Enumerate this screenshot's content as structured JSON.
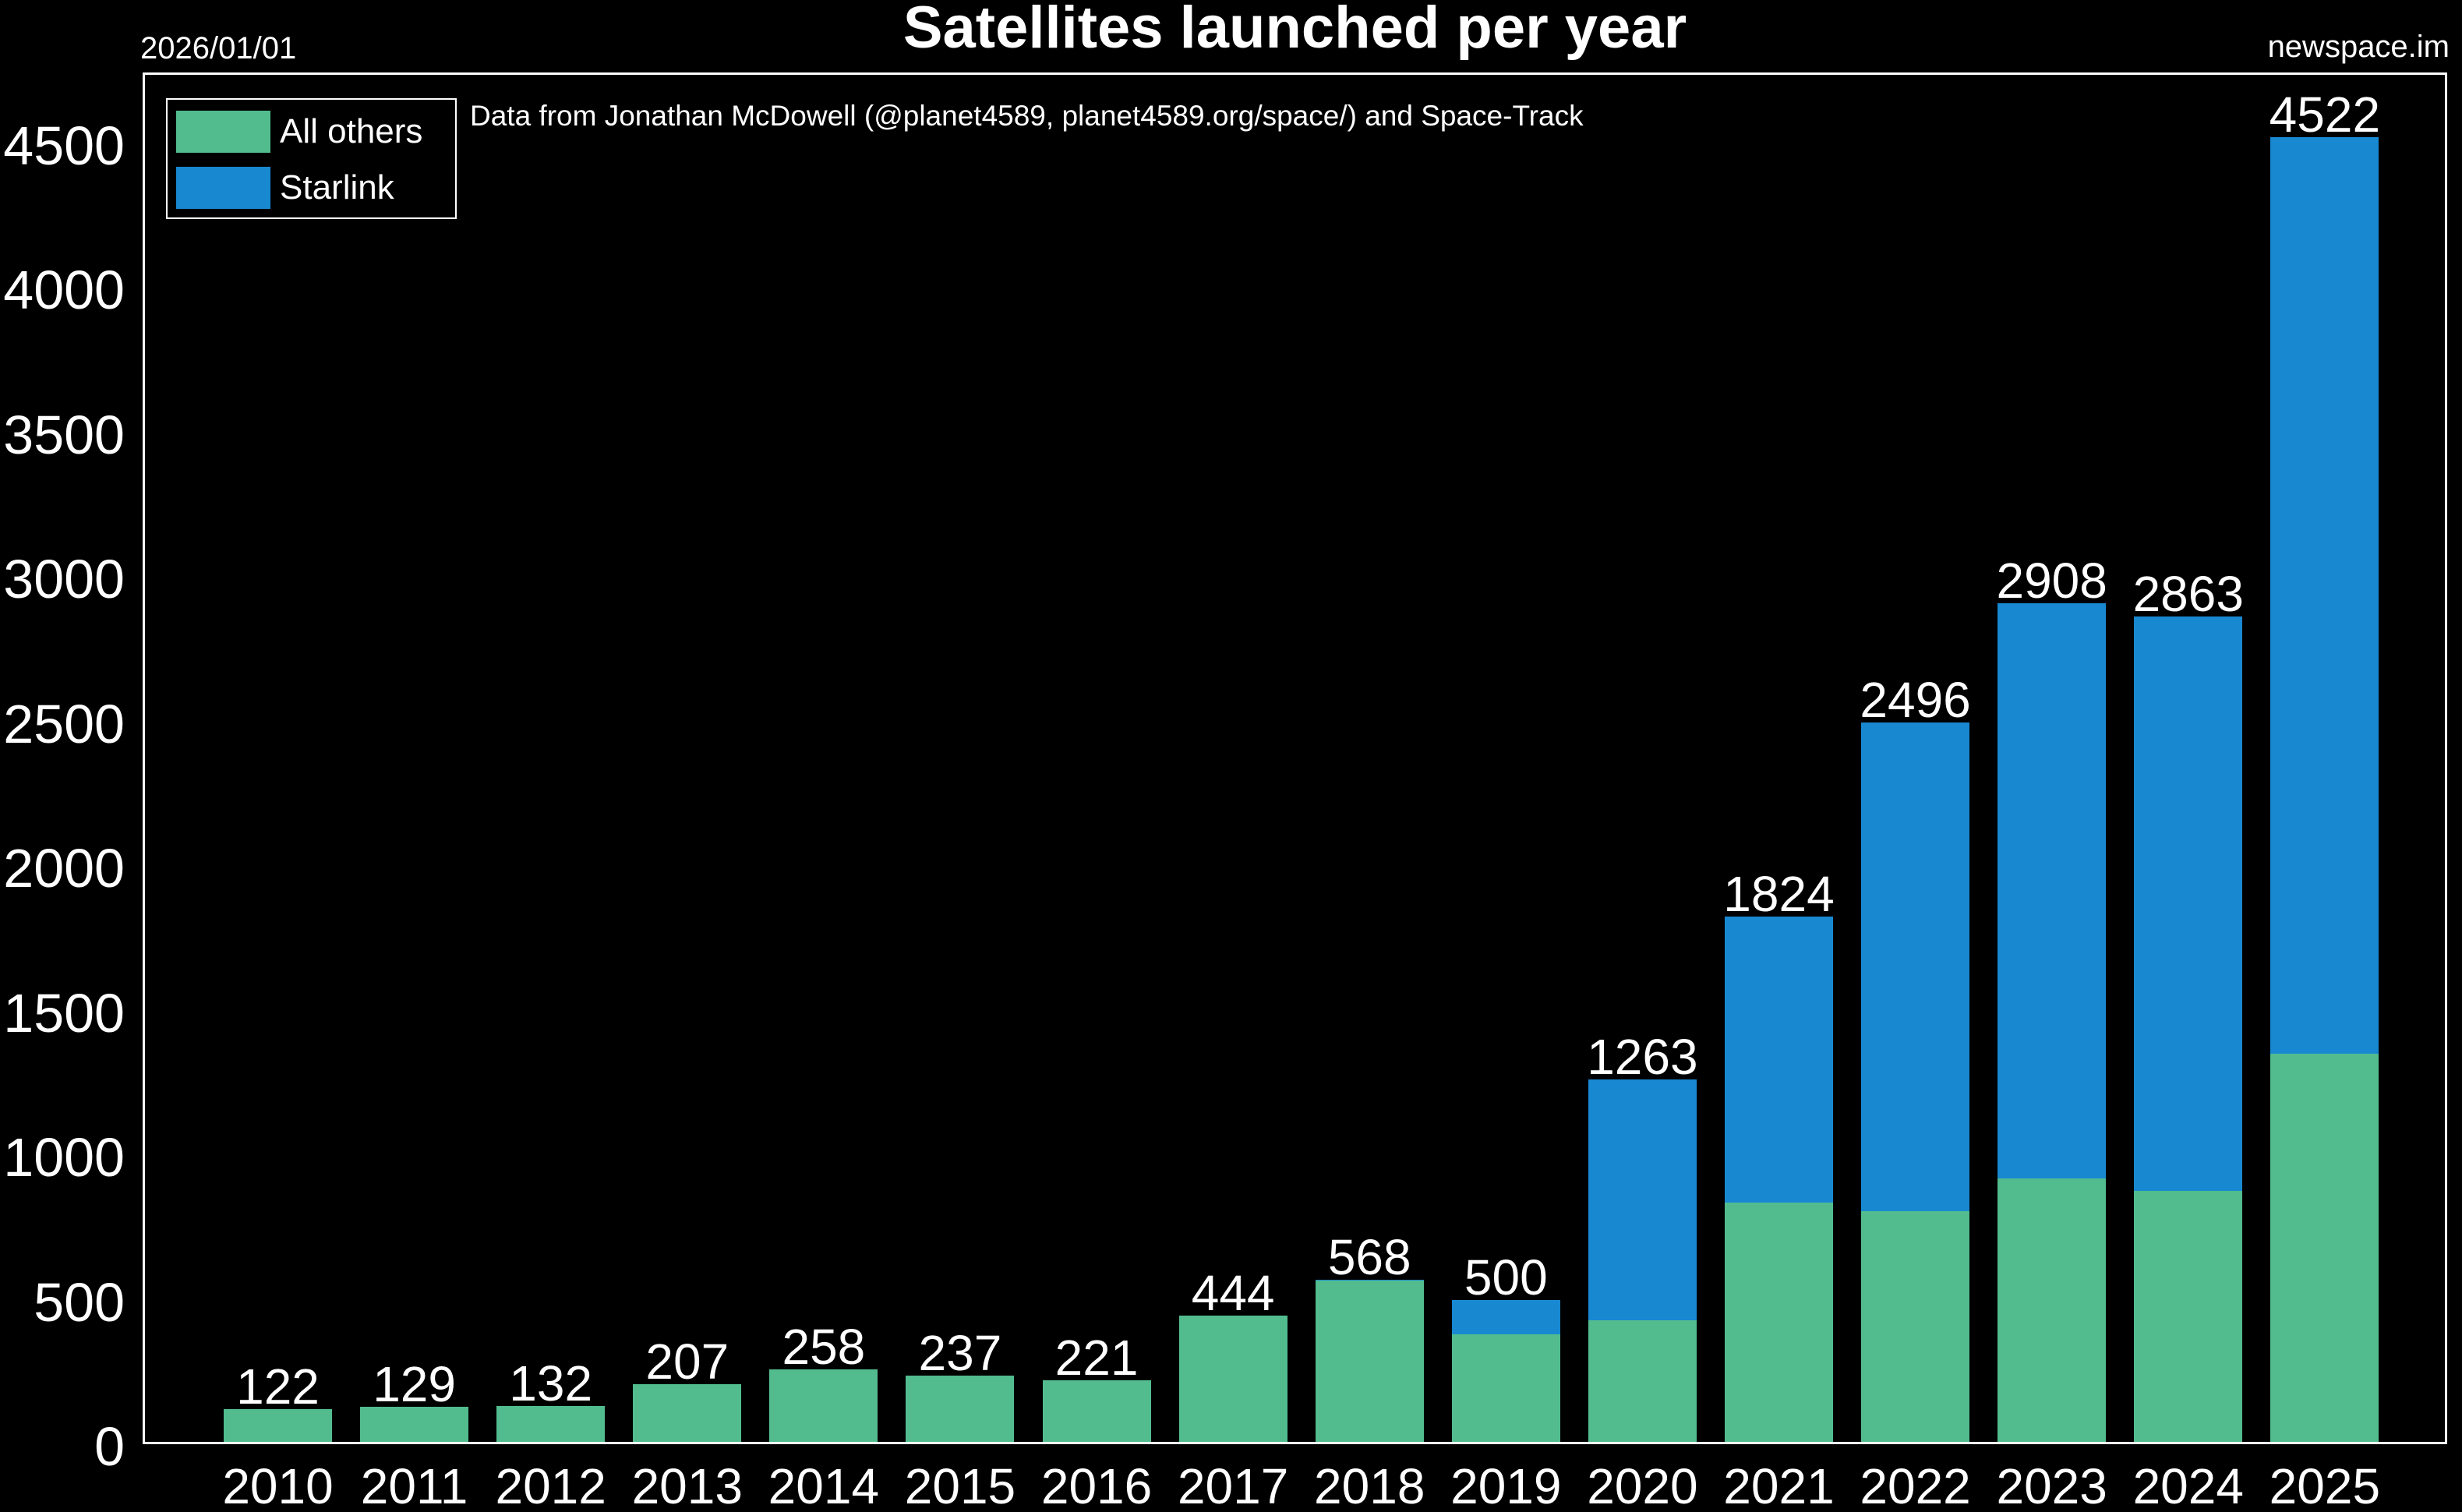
{
  "header": {
    "date_stamp": "2026/01/01",
    "watermark": "newspace.im"
  },
  "legend": {
    "items": [
      {
        "label": "All others",
        "color": "#52BC8E"
      },
      {
        "label": "Starlink",
        "color": "#1888D1"
      }
    ]
  },
  "chart_data": {
    "type": "bar",
    "stacked": true,
    "title": "Satellites launched per year",
    "subtitle": "Data from Jonathan McDowell (@planet4589, planet4589.org/space/) and Space-Track",
    "categories": [
      "2010",
      "2011",
      "2012",
      "2013",
      "2014",
      "2015",
      "2016",
      "2017",
      "2018",
      "2019",
      "2020",
      "2021",
      "2022",
      "2023",
      "2024",
      "2025"
    ],
    "series": [
      {
        "name": "All others",
        "color": "#52BC8E",
        "values": [
          122,
          129,
          132,
          207,
          258,
          237,
          221,
          444,
          566,
          380,
          430,
          835,
          805,
          920,
          875,
          1350
        ]
      },
      {
        "name": "Starlink",
        "color": "#1888D1",
        "values": [
          0,
          0,
          0,
          0,
          0,
          0,
          0,
          0,
          2,
          120,
          833,
          989,
          1691,
          1988,
          1988,
          3172
        ]
      }
    ],
    "totals": [
      122,
      129,
      132,
      207,
      258,
      237,
      221,
      444,
      568,
      500,
      1263,
      1824,
      2496,
      2908,
      2863,
      4522
    ],
    "yticks": [
      0,
      500,
      1000,
      1500,
      2000,
      2500,
      3000,
      3500,
      4000,
      4500
    ],
    "ylim": [
      0,
      4745
    ],
    "xlabel": "",
    "ylabel": "",
    "grid": false,
    "legend_position": "upper left",
    "background": "#000000",
    "text_color": "#ffffff"
  }
}
